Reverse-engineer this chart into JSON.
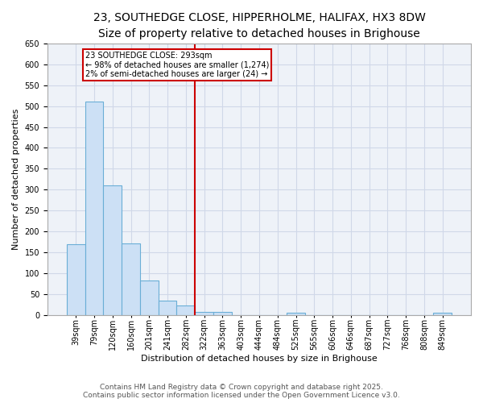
{
  "title_line1": "23, SOUTHEDGE CLOSE, HIPPERHOLME, HALIFAX, HX3 8DW",
  "title_line2": "Size of property relative to detached houses in Brighouse",
  "xlabel": "Distribution of detached houses by size in Brighouse",
  "ylabel": "Number of detached properties",
  "categories": [
    "39sqm",
    "79sqm",
    "120sqm",
    "160sqm",
    "201sqm",
    "241sqm",
    "282sqm",
    "322sqm",
    "363sqm",
    "403sqm",
    "444sqm",
    "484sqm",
    "525sqm",
    "565sqm",
    "606sqm",
    "646sqm",
    "687sqm",
    "727sqm",
    "768sqm",
    "808sqm",
    "849sqm"
  ],
  "values": [
    170,
    510,
    310,
    172,
    82,
    35,
    22,
    8,
    8,
    0,
    0,
    0,
    5,
    0,
    0,
    0,
    0,
    0,
    0,
    0,
    5
  ],
  "bar_color": "#cce0f5",
  "bar_edgecolor": "#6aaed6",
  "vline_x": 7,
  "vline_color": "#cc0000",
  "annotation_text": "23 SOUTHEDGE CLOSE: 293sqm\n← 98% of detached houses are smaller (1,274)\n2% of semi-detached houses are larger (24) →",
  "annotation_box_color": "#cc0000",
  "ylim": [
    0,
    650
  ],
  "yticks": [
    0,
    50,
    100,
    150,
    200,
    250,
    300,
    350,
    400,
    450,
    500,
    550,
    600,
    650
  ],
  "grid_color": "#d0d8e8",
  "background_color": "#eef2f8",
  "footer_line1": "Contains HM Land Registry data © Crown copyright and database right 2025.",
  "footer_line2": "Contains public sector information licensed under the Open Government Licence v3.0.",
  "title_fontsize": 10,
  "subtitle_fontsize": 9,
  "axis_label_fontsize": 8,
  "tick_fontsize": 7,
  "annotation_fontsize": 7,
  "footer_fontsize": 6.5
}
